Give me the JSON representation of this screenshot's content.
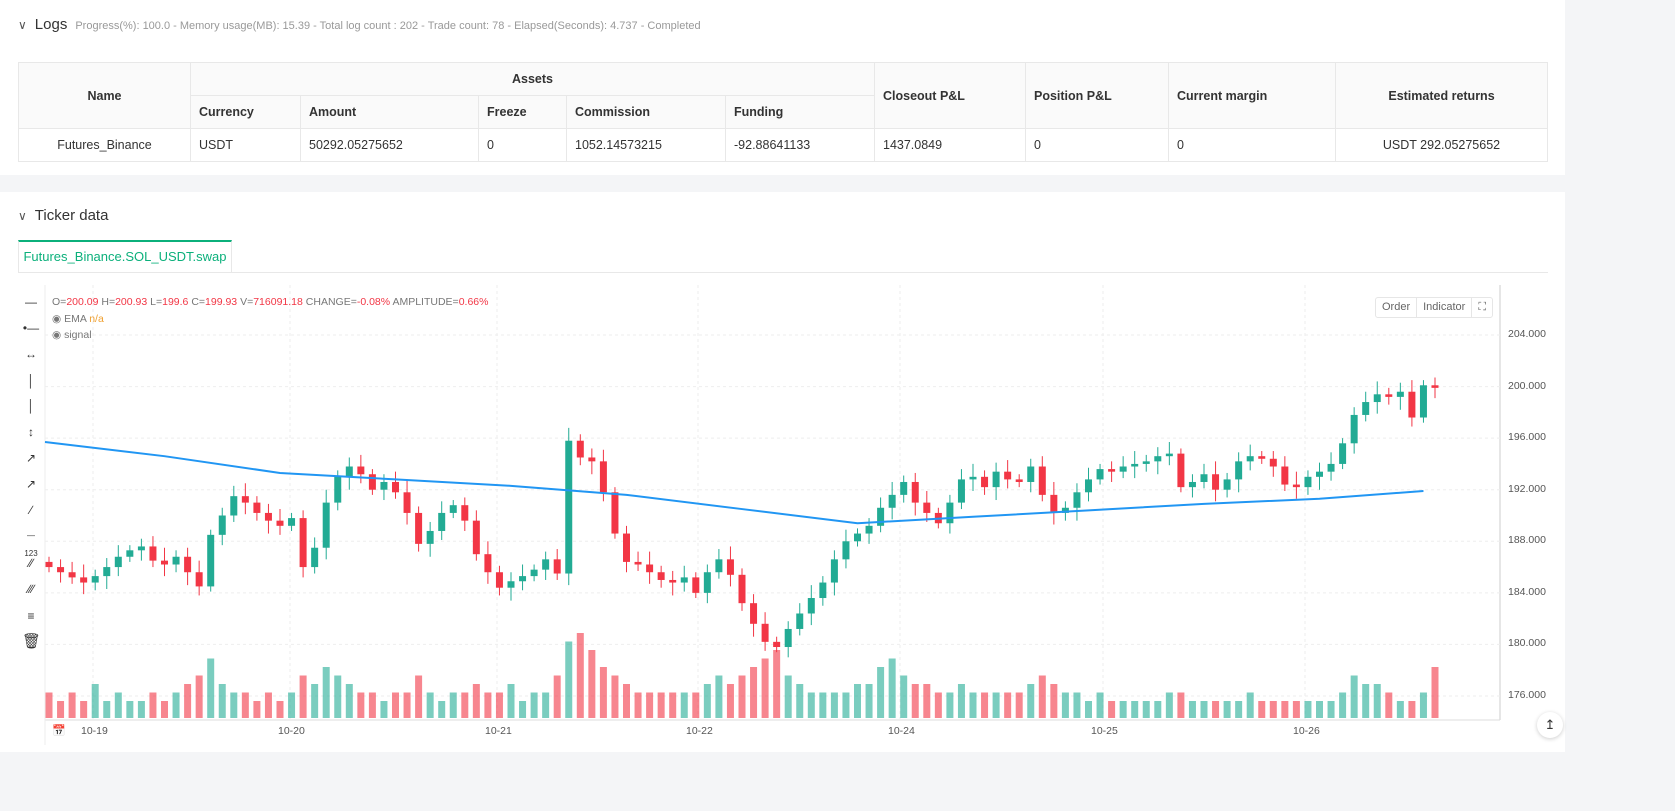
{
  "logs": {
    "title": "Logs",
    "summary": "Progress(%): 100.0  - Memory usage(MB): 15.39 - Total log count : 202 - Trade count:  78 - Elapsed(Seconds): 4.737 - Completed",
    "table": {
      "headers": {
        "name": "Name",
        "assets": "Assets",
        "currency": "Currency",
        "amount": "Amount",
        "freeze": "Freeze",
        "commission": "Commission",
        "funding": "Funding",
        "closeout": "Closeout P&L",
        "position": "Position P&L",
        "margin": "Current margin",
        "returns": "Estimated returns"
      },
      "row": {
        "name": "Futures_Binance",
        "currency": "USDT",
        "amount": "50292.05275652",
        "freeze": "0",
        "commission": "1052.14573215",
        "funding": "-92.88641133",
        "closeout": "1437.0849",
        "position": "0",
        "margin": "0",
        "returns": "USDT 292.05275652"
      }
    }
  },
  "ticker": {
    "title": "Ticker data",
    "tab": "Futures_Binance.SOL_USDT.swap",
    "legend": {
      "o_label": "O=",
      "o": "200.09",
      "h_label": "H=",
      "h": "200.93",
      "l_label": "L=",
      "l": "199.6",
      "c_label": "C=",
      "c": "199.93",
      "v_label": "V=",
      "v": "716091.18",
      "change_label": "CHANGE=",
      "change": "-0.08%",
      "amp_label": "AMPLITUDE=",
      "amp": "0.66%",
      "ema_label": "EMA",
      "ema_value": "n/a",
      "signal_label": "signal"
    },
    "buttons": {
      "order": "Order",
      "indicator": "Indicator"
    }
  },
  "colors": {
    "up": "#22ab94",
    "down": "#f23645",
    "ema": "#2196f3",
    "accent": "#0bb07b"
  },
  "chart_data": {
    "type": "candlestick",
    "ylim": [
      174,
      206
    ],
    "yticks": [
      "176.000",
      "180.000",
      "184.000",
      "188.000",
      "192.000",
      "196.000",
      "200.000",
      "204.000"
    ],
    "xticks": [
      "10-19",
      "10-20",
      "10-21",
      "10-22",
      "10-24",
      "10-25",
      "10-26"
    ],
    "grid": true,
    "first_open": 186.4,
    "close": [
      186.0,
      185.6,
      185.2,
      184.8,
      185.3,
      186.0,
      186.8,
      187.3,
      187.6,
      186.5,
      186.2,
      186.8,
      185.6,
      184.5,
      188.5,
      190.0,
      191.5,
      191.0,
      190.2,
      189.6,
      189.2,
      189.8,
      186.0,
      187.5,
      191.0,
      193.0,
      193.8,
      193.2,
      192.0,
      192.6,
      191.8,
      190.2,
      187.8,
      188.8,
      190.2,
      190.8,
      189.6,
      187.0,
      185.6,
      184.4,
      184.9,
      185.3,
      185.8,
      186.6,
      185.5,
      195.8,
      194.5,
      194.2,
      191.8,
      188.6,
      186.4,
      186.2,
      185.6,
      185.0,
      184.8,
      185.2,
      184.0,
      185.6,
      186.6,
      185.4,
      183.2,
      181.6,
      180.2,
      179.8,
      181.2,
      182.4,
      183.6,
      184.8,
      186.6,
      188.0,
      188.6,
      189.2,
      190.6,
      191.6,
      192.6,
      191.0,
      190.2,
      189.4,
      191.0,
      192.8,
      193.0,
      192.2,
      193.4,
      192.8,
      192.6,
      193.8,
      191.6,
      190.2,
      190.6,
      191.8,
      192.8,
      193.6,
      193.4,
      193.8,
      194.0,
      194.2,
      194.6,
      194.8,
      192.2,
      192.6,
      193.2,
      192.0,
      192.8,
      194.2,
      194.6,
      194.4,
      193.8,
      192.4,
      192.2,
      193.0,
      193.4,
      194.0,
      195.6,
      197.8,
      198.8,
      199.4,
      199.2,
      199.6,
      197.6,
      200.1,
      199.9
    ],
    "volume": [
      3,
      2,
      3,
      2,
      4,
      2,
      3,
      2,
      2,
      3,
      2,
      3,
      4,
      5,
      7,
      4,
      3,
      3,
      2,
      3,
      2,
      3,
      5,
      4,
      6,
      5,
      4,
      3,
      3,
      2,
      3,
      3,
      5,
      3,
      2,
      3,
      3,
      4,
      3,
      3,
      4,
      2,
      3,
      3,
      5,
      9,
      10,
      8,
      6,
      5,
      4,
      3,
      3,
      3,
      3,
      3,
      3,
      4,
      5,
      4,
      5,
      6,
      7,
      8,
      5,
      4,
      3,
      3,
      3,
      3,
      4,
      4,
      6,
      7,
      5,
      4,
      4,
      3,
      3,
      4,
      3,
      3,
      3,
      3,
      3,
      4,
      5,
      4,
      3,
      3,
      2,
      3,
      2,
      2,
      2,
      2,
      2,
      3,
      3,
      2,
      2,
      2,
      2,
      2,
      3,
      2,
      2,
      2,
      2,
      2,
      2,
      2,
      3,
      5,
      4,
      4,
      3,
      2,
      2,
      3,
      6
    ],
    "ema": [
      195.7,
      194.6,
      193.3,
      192.8,
      192.3,
      191.6,
      190.5,
      189.4,
      189.9,
      190.4,
      190.9,
      191.3,
      191.9
    ],
    "ema_step": 10
  }
}
